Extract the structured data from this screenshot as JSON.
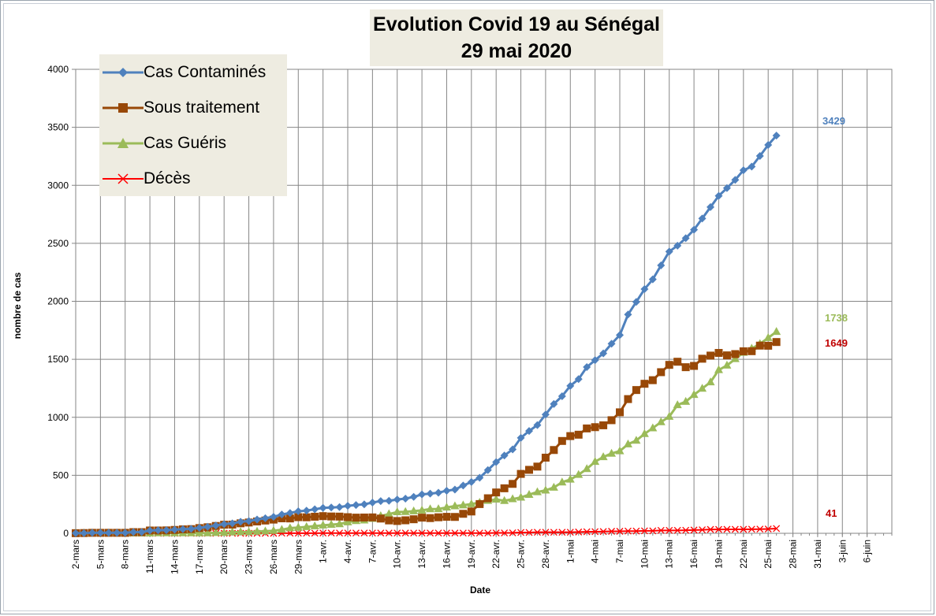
{
  "chart_data": {
    "type": "line",
    "title": [
      "Evolution Covid 19  au Sénégal",
      "29 mai 2020"
    ],
    "xlabel": "Date",
    "ylabel": "nombre de cas",
    "ylim": [
      0,
      4000
    ],
    "yticks": [
      0,
      500,
      1000,
      1500,
      2000,
      2500,
      3000,
      3500,
      4000
    ],
    "grid": true,
    "legend_position": "top-left",
    "x_tick_labels": [
      "2-mars",
      "5-mars",
      "8-mars",
      "11-mars",
      "14-mars",
      "17-mars",
      "20-mars",
      "23-mars",
      "26-mars",
      "29-mars",
      "1-avr.",
      "4-avr.",
      "7-avr.",
      "10-avr.",
      "13-avr.",
      "16-avr.",
      "19-avr.",
      "22-avr.",
      "25-avr.",
      "28-avr.",
      "1-mai",
      "4-mai",
      "7-mai",
      "10-mai",
      "13-mai",
      "16-mai",
      "19-mai",
      "22-mai",
      "25-mai",
      "28-mai",
      "31-mai",
      "3-juin",
      "6-juin"
    ],
    "x_days_total": 99,
    "series": [
      {
        "name": "Cas Contaminés",
        "color": "#4f81bd",
        "marker": "diamond",
        "end_label": "3429",
        "values": [
          1,
          2,
          4,
          4,
          4,
          4,
          4,
          10,
          10,
          24,
          26,
          27,
          31,
          36,
          38,
          47,
          56,
          67,
          79,
          86,
          99,
          105,
          119,
          130,
          142,
          162,
          175,
          190,
          195,
          207,
          219,
          222,
          226,
          237,
          244,
          250,
          265,
          278,
          280,
          291,
          299,
          314,
          335,
          342,
          350,
          367,
          377,
          412,
          442,
          479,
          545,
          614,
          671,
          723,
          823,
          882,
          933,
          1024,
          1115,
          1182,
          1271,
          1329,
          1433,
          1492,
          1551,
          1634,
          1709,
          1886,
          1995,
          2105,
          2189,
          2310,
          2429,
          2480,
          2544,
          2617,
          2714,
          2812,
          2909,
          2976,
          3047,
          3130,
          3161,
          3253,
          3348,
          3429
        ]
      },
      {
        "name": "Sous traitement",
        "color": "#984807",
        "marker": "square",
        "end_label": "1649",
        "values": [
          1,
          2,
          4,
          4,
          4,
          4,
          4,
          10,
          10,
          24,
          24,
          25,
          29,
          34,
          36,
          45,
          52,
          63,
          74,
          75,
          86,
          93,
          102,
          110,
          118,
          129,
          128,
          139,
          138,
          143,
          148,
          145,
          144,
          139,
          135,
          136,
          137,
          127,
          111,
          106,
          112,
          121,
          135,
          131,
          138,
          142,
          141,
          168,
          188,
          252,
          302,
          352,
          388,
          426,
          512,
          547,
          575,
          652,
          718,
          796,
          838,
          850,
          904,
          915,
          931,
          975,
          1043,
          1157,
          1235,
          1289,
          1320,
          1389,
          1452,
          1479,
          1432,
          1443,
          1505,
          1532,
          1555,
          1534,
          1545,
          1569,
          1570,
          1618,
          1617,
          1649
        ]
      },
      {
        "name": "Cas Guéris",
        "color": "#9bbb59",
        "marker": "triangle",
        "end_label": "1738",
        "values": [
          0,
          0,
          0,
          0,
          0,
          0,
          0,
          0,
          0,
          0,
          2,
          2,
          2,
          2,
          2,
          2,
          2,
          4,
          5,
          9,
          11,
          11,
          15,
          18,
          22,
          31,
          45,
          49,
          55,
          62,
          69,
          75,
          80,
          96,
          107,
          112,
          126,
          149,
          166,
          183,
          185,
          191,
          198,
          209,
          210,
          223,
          234,
          242,
          252,
          265,
          281,
          292,
          280,
          295,
          309,
          333,
          356,
          370,
          395,
          440,
          464,
          505,
          555,
          617,
          658,
          688,
          709,
          768,
          800,
          857,
          907,
          959,
          1006,
          1106,
          1135,
          1194,
          1248,
          1303,
          1408,
          1447,
          1503,
          1558,
          1593,
          1633,
          1685,
          1738
        ]
      },
      {
        "name": "Décès",
        "color": "#ff0000",
        "marker": "x",
        "end_label": "41",
        "values": [
          0,
          0,
          0,
          0,
          0,
          0,
          0,
          0,
          0,
          0,
          0,
          0,
          0,
          0,
          0,
          0,
          0,
          0,
          0,
          0,
          0,
          0,
          0,
          0,
          0,
          1,
          1,
          1,
          1,
          1,
          2,
          2,
          2,
          2,
          2,
          2,
          2,
          2,
          2,
          2,
          2,
          2,
          2,
          2,
          2,
          2,
          2,
          2,
          2,
          2,
          2,
          3,
          3,
          4,
          7,
          7,
          9,
          9,
          9,
          9,
          9,
          11,
          13,
          14,
          15,
          17,
          17,
          19,
          19,
          21,
          21,
          25,
          25,
          25,
          26,
          28,
          30,
          33,
          33,
          34,
          34,
          34,
          35,
          36,
          37,
          41
        ]
      }
    ]
  }
}
